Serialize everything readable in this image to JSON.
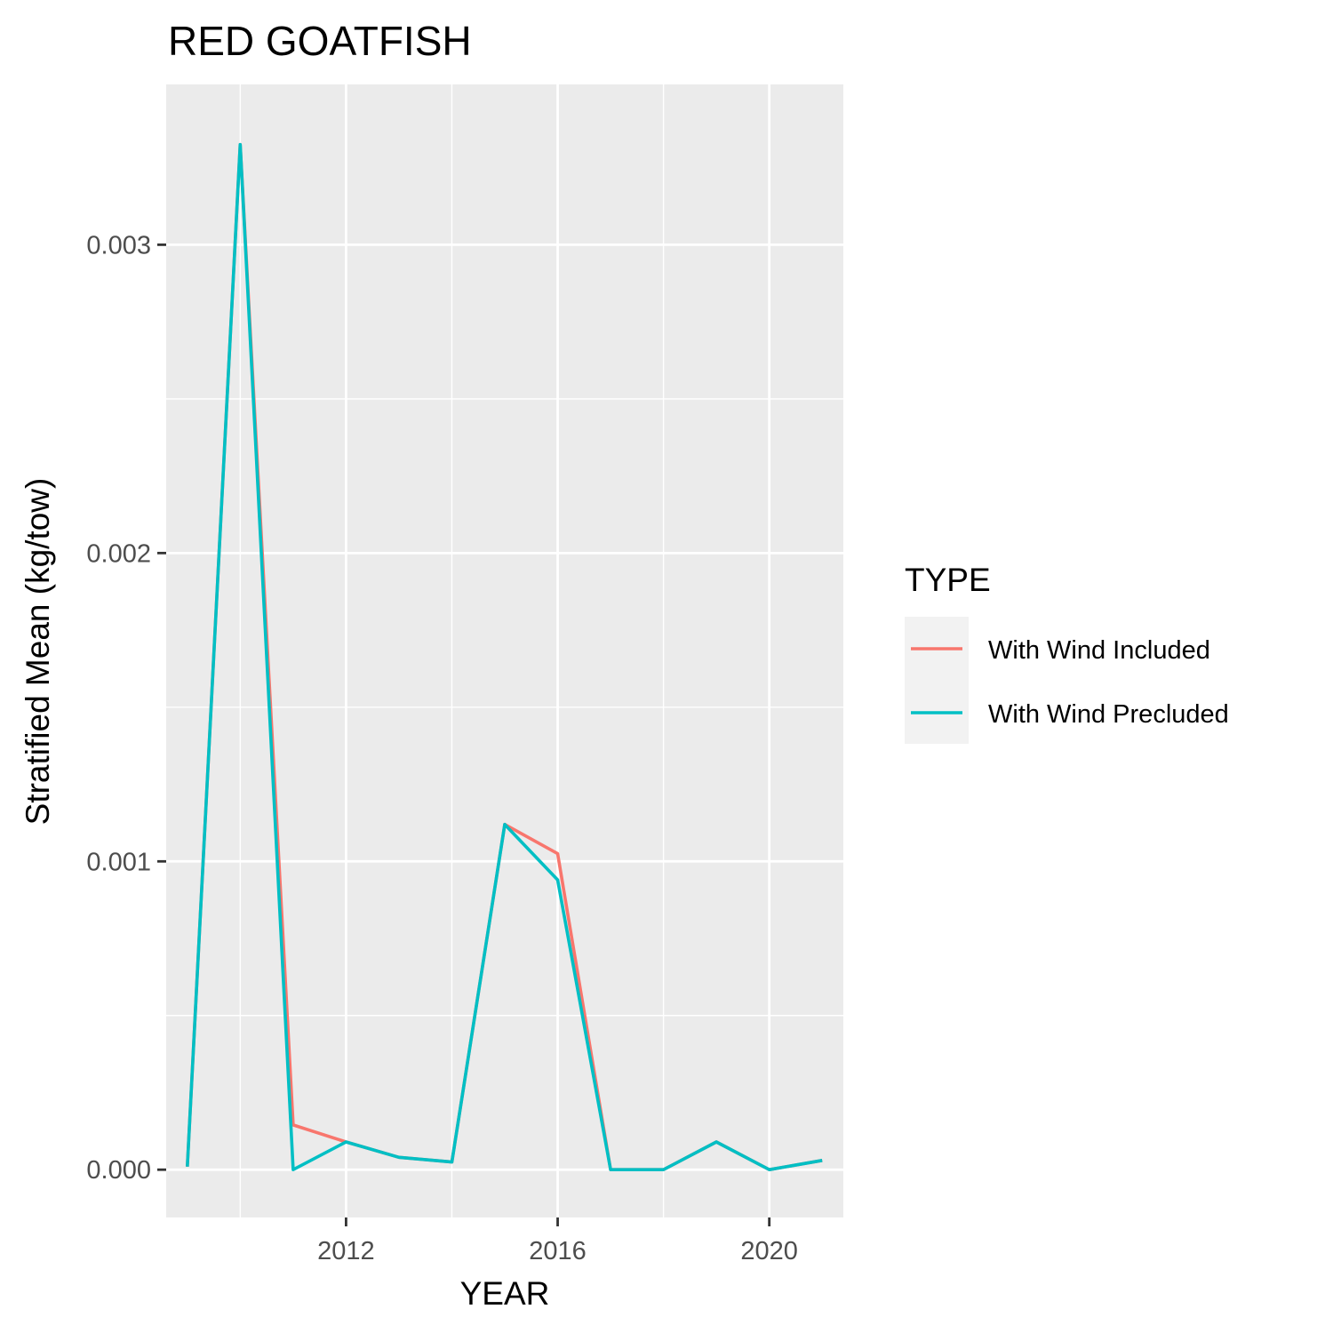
{
  "chart_data": {
    "type": "line",
    "title": "RED GOATFISH",
    "xlabel": "YEAR",
    "ylabel": "Stratified Mean (kg/tow)",
    "xlim": [
      2008.6,
      2021.4
    ],
    "ylim": [
      -0.000155,
      0.00352
    ],
    "x_ticks": [
      2012,
      2016,
      2020
    ],
    "x_tick_labels": [
      "2012",
      "2016",
      "2020"
    ],
    "x_minor": [
      2010,
      2014,
      2018
    ],
    "y_ticks": [
      0.0,
      0.001,
      0.002,
      0.003
    ],
    "y_tick_labels": [
      "0.000",
      "0.001",
      "0.002",
      "0.003"
    ],
    "y_minor": [
      0.0005,
      0.0015,
      0.0025
    ],
    "grid": true,
    "legend": {
      "title": "TYPE",
      "placement": "right",
      "entries": [
        "With Wind Included",
        "With Wind Precluded"
      ]
    },
    "x": [
      2009,
      2010,
      2011,
      2012,
      2013,
      2014,
      2015,
      2016,
      2017,
      2018,
      2019,
      2020,
      2021
    ],
    "series": [
      {
        "name": "With Wind Included",
        "color": "#F8766D",
        "values": [
          1e-05,
          0.003325,
          0.000145,
          9e-05,
          4e-05,
          2.5e-05,
          0.00112,
          0.001025,
          0.0,
          0.0,
          9e-05,
          0.0,
          3e-05
        ]
      },
      {
        "name": "With Wind Precluded",
        "color": "#00BFC4",
        "values": [
          1e-05,
          0.003325,
          0.0,
          9e-05,
          4e-05,
          2.5e-05,
          0.00112,
          0.00094,
          0.0,
          0.0,
          9e-05,
          0.0,
          3e-05
        ]
      }
    ]
  }
}
